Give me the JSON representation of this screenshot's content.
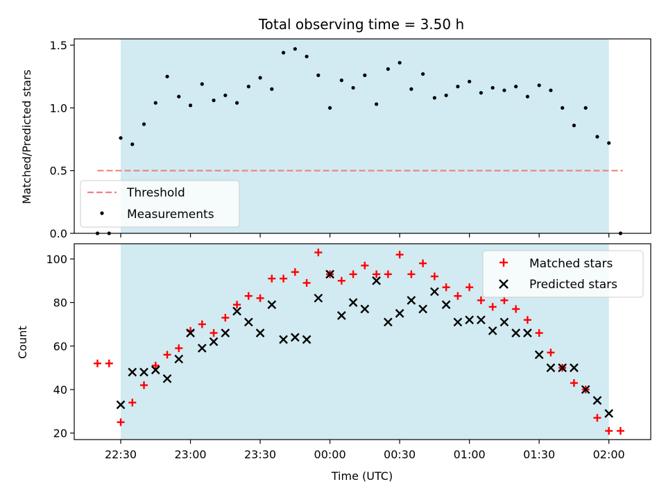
{
  "chart_data": {
    "type": "scatter",
    "title": "Total observing time = 3.50 h",
    "xlabel": "Time (UTC)",
    "x_ticks": [
      "22:30",
      "23:00",
      "23:30",
      "00:00",
      "00:30",
      "01:00",
      "01:30",
      "02:00"
    ],
    "x_range": [
      "22:10",
      "02:18"
    ],
    "observing_window": [
      "22:30",
      "02:00"
    ],
    "colors": {
      "window": "#add8e6",
      "threshold": "#f08080",
      "measurements": "#000000",
      "matched": "#ff0000",
      "predicted": "#000000"
    },
    "top": {
      "ylabel": "Matched/Predicted stars",
      "ylim": [
        0,
        1.55
      ],
      "y_ticks": [
        "0.0",
        "0.5",
        "1.0",
        "1.5"
      ],
      "threshold": {
        "name": "Threshold",
        "value": 0.5,
        "x_range": [
          "22:20",
          "02:06"
        ]
      },
      "legend": {
        "position": "lower-left",
        "entries": [
          "Threshold",
          "Measurements"
        ]
      },
      "measurements": {
        "name": "Measurements",
        "x": [
          "22:20",
          "22:25",
          "22:30",
          "22:35",
          "22:40",
          "22:45",
          "22:50",
          "22:55",
          "23:00",
          "23:05",
          "23:10",
          "23:15",
          "23:20",
          "23:25",
          "23:30",
          "23:35",
          "23:40",
          "23:45",
          "23:50",
          "23:55",
          "00:00",
          "00:05",
          "00:10",
          "00:15",
          "00:20",
          "00:25",
          "00:30",
          "00:35",
          "00:40",
          "00:45",
          "00:50",
          "00:55",
          "01:00",
          "01:05",
          "01:10",
          "01:15",
          "01:20",
          "01:25",
          "01:30",
          "01:35",
          "01:40",
          "01:45",
          "01:50",
          "01:55",
          "02:00",
          "02:05"
        ],
        "y": [
          0.0,
          0.0,
          0.76,
          0.71,
          0.87,
          1.04,
          1.25,
          1.09,
          1.02,
          1.19,
          1.06,
          1.1,
          1.04,
          1.17,
          1.24,
          1.15,
          1.44,
          1.47,
          1.41,
          1.26,
          1.0,
          1.22,
          1.16,
          1.26,
          1.03,
          1.31,
          1.36,
          1.15,
          1.27,
          1.08,
          1.1,
          1.17,
          1.21,
          1.12,
          1.16,
          1.14,
          1.17,
          1.09,
          1.18,
          1.14,
          1.0,
          0.86,
          1.0,
          0.77,
          0.72,
          0.0
        ]
      }
    },
    "bottom": {
      "ylabel": "Count",
      "ylim": [
        17,
        107
      ],
      "y_ticks": [
        "20",
        "40",
        "60",
        "80",
        "100"
      ],
      "legend": {
        "position": "upper-right",
        "entries": [
          "Matched stars",
          "Predicted stars"
        ]
      },
      "series": [
        {
          "name": "Matched stars",
          "marker": "plus",
          "x": [
            "22:20",
            "22:25",
            "22:30",
            "22:35",
            "22:40",
            "22:45",
            "22:50",
            "22:55",
            "23:00",
            "23:05",
            "23:10",
            "23:15",
            "23:20",
            "23:25",
            "23:30",
            "23:35",
            "23:40",
            "23:45",
            "23:50",
            "23:55",
            "00:00",
            "00:05",
            "00:10",
            "00:15",
            "00:20",
            "00:25",
            "00:30",
            "00:35",
            "00:40",
            "00:45",
            "00:50",
            "00:55",
            "01:00",
            "01:05",
            "01:10",
            "01:15",
            "01:20",
            "01:25",
            "01:30",
            "01:35",
            "01:40",
            "01:45",
            "01:50",
            "01:55",
            "02:00",
            "02:05"
          ],
          "y": [
            52,
            52,
            25,
            34,
            42,
            51,
            56,
            59,
            67,
            70,
            66,
            73,
            79,
            83,
            82,
            91,
            91,
            94,
            89,
            103,
            93,
            90,
            93,
            97,
            93,
            93,
            102,
            93,
            98,
            92,
            87,
            83,
            87,
            81,
            78,
            81,
            77,
            72,
            66,
            57,
            50,
            43,
            40,
            27,
            21,
            21
          ]
        },
        {
          "name": "Predicted stars",
          "marker": "x",
          "x": [
            "22:30",
            "22:35",
            "22:40",
            "22:45",
            "22:50",
            "22:55",
            "23:00",
            "23:05",
            "23:10",
            "23:15",
            "23:20",
            "23:25",
            "23:30",
            "23:35",
            "23:40",
            "23:45",
            "23:50",
            "23:55",
            "00:00",
            "00:05",
            "00:10",
            "00:15",
            "00:20",
            "00:25",
            "00:30",
            "00:35",
            "00:40",
            "00:45",
            "00:50",
            "00:55",
            "01:00",
            "01:05",
            "01:10",
            "01:15",
            "01:20",
            "01:25",
            "01:30",
            "01:35",
            "01:40",
            "01:45",
            "01:50",
            "01:55",
            "02:00"
          ],
          "y": [
            33,
            48,
            48,
            49,
            45,
            54,
            66,
            59,
            62,
            66,
            76,
            71,
            66,
            79,
            63,
            64,
            63,
            82,
            93,
            74,
            80,
            77,
            90,
            71,
            75,
            81,
            77,
            85,
            79,
            71,
            72,
            72,
            67,
            71,
            66,
            66,
            56,
            50,
            50,
            50,
            40,
            35,
            29
          ]
        }
      ]
    }
  }
}
